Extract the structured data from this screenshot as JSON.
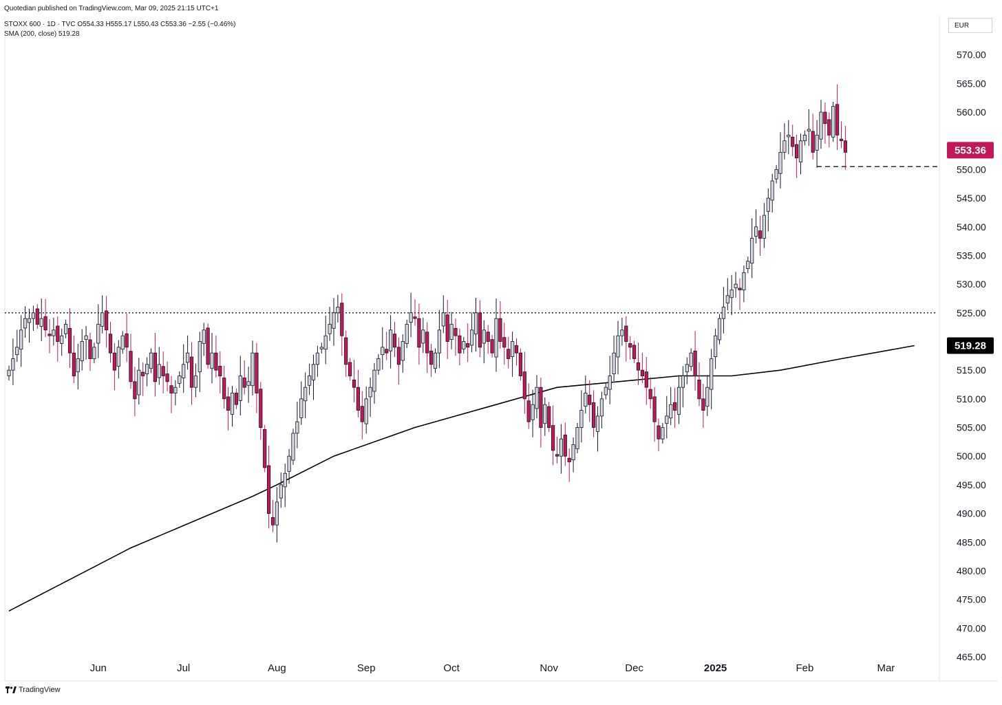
{
  "header": {
    "publisher": "Quotedian published on TradingView.com, Mar 09, 2025 21:15 UTC+1",
    "ohlc": "STOXX 600 · 1D · TVC  O554.33  H555.17  L550.43  C553.36  −2.55 (−0.46%)",
    "sma": "SMA (200, close)  519.28"
  },
  "currency": "EUR",
  "brand": "TradingView",
  "colors": {
    "up": "#d1d4dc",
    "down": "#c2185b",
    "outline": "#131722",
    "sma": "#000000",
    "bg": "#ffffff"
  },
  "chart_data": {
    "type": "candlestick",
    "ylim": [
      465,
      572
    ],
    "yticks": [
      570,
      565,
      560,
      555,
      550,
      545,
      540,
      535,
      530,
      525,
      520,
      515,
      510,
      505,
      500,
      495,
      490,
      485,
      480,
      475,
      470,
      465
    ],
    "ytick_labels": [
      "570.00",
      "565.00",
      "560.00",
      "",
      "550.00",
      "545.00",
      "540.00",
      "535.00",
      "530.00",
      "525.00",
      "",
      "515.00",
      "510.00",
      "505.00",
      "500.00",
      "495.00",
      "490.00",
      "485.00",
      "480.00",
      "475.00",
      "470.00",
      "465.00"
    ],
    "xticks": [
      {
        "label": "Jun",
        "index": 22,
        "bold": false
      },
      {
        "label": "Jul",
        "index": 43,
        "bold": false
      },
      {
        "label": "Aug",
        "index": 66,
        "bold": false
      },
      {
        "label": "Sep",
        "index": 88,
        "bold": false
      },
      {
        "label": "Oct",
        "index": 109,
        "bold": false
      },
      {
        "label": "Nov",
        "index": 133,
        "bold": false
      },
      {
        "label": "Dec",
        "index": 154,
        "bold": false
      },
      {
        "label": "2025",
        "index": 174,
        "bold": true
      },
      {
        "label": "Feb",
        "index": 196,
        "bold": false
      },
      {
        "label": "Mar",
        "index": 216,
        "bold": false
      }
    ],
    "close_series": [
      515,
      517,
      519,
      522,
      524,
      524,
      525,
      523,
      524,
      522,
      521,
      522,
      520,
      521,
      523,
      518,
      514,
      517,
      520,
      521,
      517,
      519,
      523,
      525,
      522,
      518,
      515,
      519,
      521,
      519,
      513,
      510,
      515,
      514,
      516,
      518,
      513,
      516,
      514,
      513,
      511,
      512,
      514,
      516,
      518,
      512,
      514,
      520,
      522,
      516,
      518,
      515,
      514,
      510,
      508,
      511,
      509,
      514,
      512,
      513,
      518,
      511,
      505,
      498,
      490,
      488,
      492,
      495,
      497,
      500,
      504,
      506,
      510,
      512,
      514,
      516,
      518,
      519,
      521,
      523,
      525,
      526,
      521,
      516,
      514,
      512,
      508,
      506,
      510,
      512,
      515,
      517,
      519,
      518,
      522,
      519,
      516,
      520,
      523,
      525,
      524,
      519,
      522,
      518,
      516,
      518,
      522,
      525,
      520,
      523,
      521,
      518,
      520,
      519,
      522,
      525,
      519,
      522,
      520,
      518,
      524,
      520,
      519,
      517,
      520,
      518,
      514,
      510,
      506,
      509,
      512,
      505,
      509,
      505,
      501,
      500,
      503,
      500,
      499,
      502,
      505,
      508,
      511,
      509,
      505,
      507,
      510,
      512,
      514,
      518,
      521,
      522,
      520,
      519,
      517,
      515,
      514,
      512,
      510,
      506,
      503,
      505,
      507,
      509,
      508,
      512,
      514,
      516,
      518,
      514,
      510,
      508,
      512,
      517,
      521,
      524,
      526,
      528,
      529,
      530,
      529,
      532,
      534,
      538,
      540,
      538,
      542,
      545,
      548,
      550,
      553,
      555,
      556,
      554,
      552,
      555,
      556,
      557,
      553,
      556,
      560,
      558,
      556,
      561,
      556,
      555,
      553
    ],
    "last_price": {
      "label": "553.36",
      "value": 553.36,
      "color": "#c2185b"
    },
    "sma": {
      "name": "SMA (200, close)",
      "label": "519.28",
      "value": 519.28,
      "points": [
        [
          0,
          473
        ],
        [
          30,
          484
        ],
        [
          60,
          493
        ],
        [
          66,
          495
        ],
        [
          80,
          500
        ],
        [
          100,
          505
        ],
        [
          120,
          509
        ],
        [
          135,
          512
        ],
        [
          150,
          513
        ],
        [
          165,
          514
        ],
        [
          178,
          514
        ],
        [
          190,
          515
        ],
        [
          205,
          517
        ],
        [
          223,
          519.28
        ]
      ]
    },
    "levels": [
      {
        "kind": "dotted",
        "value": 525,
        "from_index": 0,
        "to_index": 231
      },
      {
        "kind": "dashed",
        "value": 550.5,
        "from_index": 200,
        "to_index": 231
      }
    ]
  }
}
